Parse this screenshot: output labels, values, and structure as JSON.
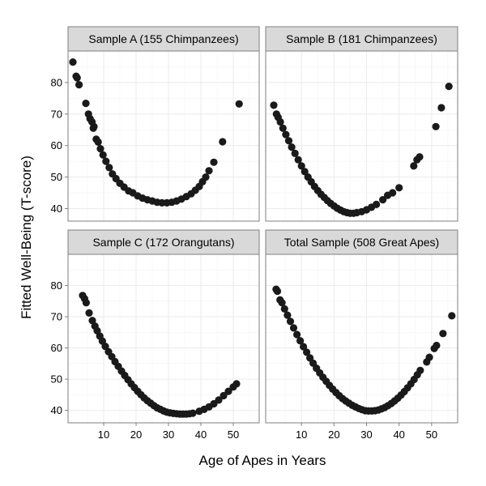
{
  "chart_data": {
    "type": "scatter",
    "layout": "facet-grid-2x2",
    "xlabel": "Age of Apes in Years",
    "ylabel": "Fitted Well-Being (T-score)",
    "xlim": [
      -1,
      58
    ],
    "ylim": [
      36,
      90
    ],
    "x_ticks": [
      10,
      20,
      30,
      40,
      50
    ],
    "y_ticks": [
      40,
      50,
      60,
      70,
      80
    ],
    "grid": true,
    "point_color": "#1a1a1a",
    "panel_background": "#ffffff",
    "grid_color": "#ebebeb",
    "strip_fill": "#d9d9d9",
    "panels": [
      {
        "title": "Sample A (155 Chimpanzees)",
        "points": [
          [
            0.5,
            86.5
          ],
          [
            1.5,
            82
          ],
          [
            1.8,
            81.5
          ],
          [
            2.4,
            79.3
          ],
          [
            4.5,
            73.4
          ],
          [
            5.3,
            70
          ],
          [
            5.8,
            68.5
          ],
          [
            6.4,
            67.5
          ],
          [
            6.8,
            65.5
          ],
          [
            7,
            66
          ],
          [
            7.7,
            62
          ],
          [
            8.3,
            61.1
          ],
          [
            9,
            59
          ],
          [
            9.8,
            57
          ],
          [
            10.7,
            55
          ],
          [
            11.7,
            53
          ],
          [
            12.7,
            51
          ],
          [
            13.8,
            49.5
          ],
          [
            15,
            48
          ],
          [
            16.3,
            46.8
          ],
          [
            17.7,
            45.6
          ],
          [
            19,
            45
          ],
          [
            20.5,
            44
          ],
          [
            22,
            43.3
          ],
          [
            23.5,
            42.8
          ],
          [
            25,
            42.4
          ],
          [
            26.5,
            42
          ],
          [
            28,
            41.8
          ],
          [
            29.5,
            41.8
          ],
          [
            31,
            42
          ],
          [
            32.5,
            42.4
          ],
          [
            34,
            43
          ],
          [
            35.5,
            43.8
          ],
          [
            37,
            44.7
          ],
          [
            38.3,
            45.8
          ],
          [
            39.5,
            47
          ],
          [
            40.5,
            48.5
          ],
          [
            41.5,
            50
          ],
          [
            42.5,
            52
          ],
          [
            44,
            54.7
          ],
          [
            46.7,
            61.2
          ],
          [
            51.8,
            73.2
          ]
        ]
      },
      {
        "title": "Sample B (181 Chimpanzees)",
        "points": [
          [
            1.5,
            72.8
          ],
          [
            2.3,
            70
          ],
          [
            2.8,
            69
          ],
          [
            3.5,
            67.5
          ],
          [
            4.3,
            65.5
          ],
          [
            5.2,
            63.5
          ],
          [
            6.1,
            61.5
          ],
          [
            7,
            59.5
          ],
          [
            8,
            57.5
          ],
          [
            9,
            55.5
          ],
          [
            10,
            53.5
          ],
          [
            11,
            51.7
          ],
          [
            12,
            50
          ],
          [
            13,
            48.5
          ],
          [
            14,
            47
          ],
          [
            15,
            45.7
          ],
          [
            16,
            44.5
          ],
          [
            17,
            43.5
          ],
          [
            18,
            42.5
          ],
          [
            19,
            41.6
          ],
          [
            20,
            40.8
          ],
          [
            21,
            40.1
          ],
          [
            22,
            39.5
          ],
          [
            23,
            39
          ],
          [
            24,
            38.7
          ],
          [
            25,
            38.5
          ],
          [
            26,
            38.5
          ],
          [
            27,
            38.7
          ],
          [
            28.5,
            39
          ],
          [
            30,
            39.6
          ],
          [
            31.5,
            40.4
          ],
          [
            33,
            41.3
          ],
          [
            35,
            42.8
          ],
          [
            36.5,
            44.2
          ],
          [
            38,
            45
          ],
          [
            40,
            46.6
          ],
          [
            44.5,
            53.5
          ],
          [
            45.5,
            55.5
          ],
          [
            46.3,
            56.4
          ],
          [
            51.3,
            66
          ],
          [
            53,
            72
          ],
          [
            55.3,
            78.8
          ]
        ]
      },
      {
        "title": "Sample C (172 Orangutans)",
        "points": [
          [
            3.5,
            76.8
          ],
          [
            4.1,
            75.8
          ],
          [
            4.6,
            74.5
          ],
          [
            5.5,
            71.2
          ],
          [
            6.5,
            68.8
          ],
          [
            7.3,
            67
          ],
          [
            8,
            65.5
          ],
          [
            8.8,
            63.8
          ],
          [
            9.6,
            62.2
          ],
          [
            10.5,
            60.5
          ],
          [
            11.5,
            58.8
          ],
          [
            12.5,
            57.2
          ],
          [
            13.5,
            55.6
          ],
          [
            14.5,
            54.1
          ],
          [
            15.5,
            52.6
          ],
          [
            16.5,
            51.2
          ],
          [
            17.5,
            49.8
          ],
          [
            18.5,
            48.5
          ],
          [
            19.5,
            47.3
          ],
          [
            20.5,
            46.1
          ],
          [
            21.5,
            45
          ],
          [
            22.5,
            44
          ],
          [
            23.5,
            43.1
          ],
          [
            24.5,
            42.3
          ],
          [
            25.5,
            41.5
          ],
          [
            26.5,
            40.8
          ],
          [
            27.5,
            40.3
          ],
          [
            28.5,
            39.8
          ],
          [
            29.5,
            39.4
          ],
          [
            30.5,
            39.2
          ],
          [
            31.5,
            39
          ],
          [
            32.5,
            38.9
          ],
          [
            33.5,
            38.8
          ],
          [
            34.5,
            38.8
          ],
          [
            35.5,
            38.8
          ],
          [
            36.5,
            38.9
          ],
          [
            37.5,
            39.1
          ],
          [
            39.5,
            39.7
          ],
          [
            41,
            40.3
          ],
          [
            42.5,
            41.1
          ],
          [
            44,
            42.1
          ],
          [
            45.5,
            43.3
          ],
          [
            47,
            44.7
          ],
          [
            48.5,
            46.1
          ],
          [
            50,
            47.5
          ],
          [
            51,
            48.5
          ]
        ]
      },
      {
        "title": "Total Sample (508 Great Apes)",
        "points": [
          [
            2.2,
            78.8
          ],
          [
            2.6,
            78.2
          ],
          [
            3.4,
            75.4
          ],
          [
            4,
            74.5
          ],
          [
            4.8,
            72.5
          ],
          [
            5.7,
            70.5
          ],
          [
            6.6,
            68.5
          ],
          [
            7.6,
            66.4
          ],
          [
            8.6,
            64.3
          ],
          [
            9.6,
            62.3
          ],
          [
            10.6,
            60.4
          ],
          [
            11.6,
            58.6
          ],
          [
            12.6,
            56.8
          ],
          [
            13.6,
            55.1
          ],
          [
            14.6,
            53.5
          ],
          [
            15.6,
            52
          ],
          [
            16.6,
            50.6
          ],
          [
            17.6,
            49.3
          ],
          [
            18.6,
            48
          ],
          [
            19.6,
            46.8
          ],
          [
            20.6,
            45.7
          ],
          [
            21.6,
            44.7
          ],
          [
            22.6,
            43.8
          ],
          [
            23.6,
            43
          ],
          [
            24.6,
            42.3
          ],
          [
            25.6,
            41.6
          ],
          [
            26.6,
            41.1
          ],
          [
            27.6,
            40.6
          ],
          [
            28.6,
            40.2
          ],
          [
            29.6,
            39.9
          ],
          [
            30.6,
            39.8
          ],
          [
            31.6,
            39.8
          ],
          [
            32.6,
            39.9
          ],
          [
            33.6,
            40.1
          ],
          [
            34.6,
            40.5
          ],
          [
            35.6,
            40.9
          ],
          [
            36.6,
            41.5
          ],
          [
            37.6,
            42.2
          ],
          [
            38.6,
            43
          ],
          [
            39.6,
            43.9
          ],
          [
            40.6,
            44.9
          ],
          [
            41.6,
            46
          ],
          [
            42.6,
            47.2
          ],
          [
            43.6,
            48.5
          ],
          [
            44.6,
            49.9
          ],
          [
            45.6,
            51.4
          ],
          [
            46.5,
            52.8
          ],
          [
            48.5,
            55.5
          ],
          [
            49.3,
            57
          ],
          [
            50.8,
            59.8
          ],
          [
            51.5,
            60.8
          ],
          [
            53.5,
            64.6
          ],
          [
            56.2,
            70.3
          ]
        ]
      }
    ]
  }
}
